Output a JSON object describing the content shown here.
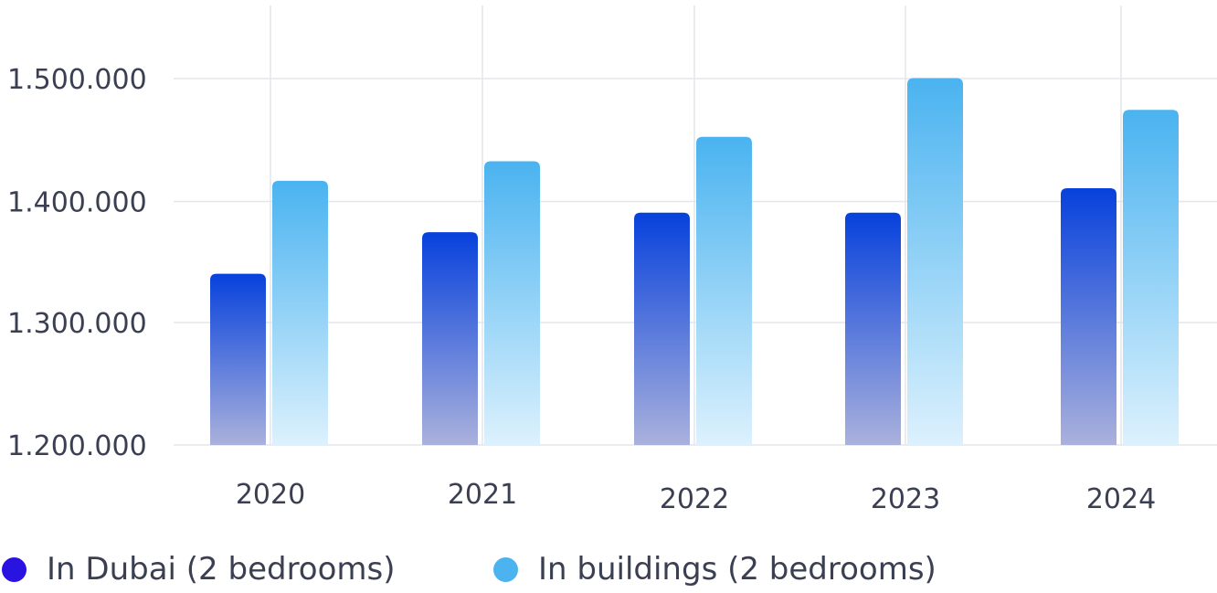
{
  "chart_data": {
    "type": "bar",
    "categories": [
      "2020",
      "2021",
      "2022",
      "2023",
      "2024"
    ],
    "series": [
      {
        "name": "In Dubai (2 bedrooms)",
        "color": "#0b44dd",
        "values": [
          1340000,
          1374000,
          1390000,
          1390000,
          1410000
        ]
      },
      {
        "name": "In buildings (2 bedrooms)",
        "color": "#4db3f0",
        "values": [
          1416000,
          1432000,
          1452000,
          1500000,
          1474000
        ]
      }
    ],
    "yticks": [
      "1.200.000",
      "1.300.000",
      "1.400.000",
      "1.500.000"
    ],
    "ylim": [
      1200000,
      1560000
    ],
    "grid": true,
    "legend_position": "bottom-left",
    "title": "",
    "xlabel": "",
    "ylabel": ""
  },
  "legend": [
    {
      "label": "In Dubai (2 bedrooms)",
      "color": "#2a12e0"
    },
    {
      "label": "In buildings (2 bedrooms)",
      "color": "#4db3f0"
    }
  ]
}
